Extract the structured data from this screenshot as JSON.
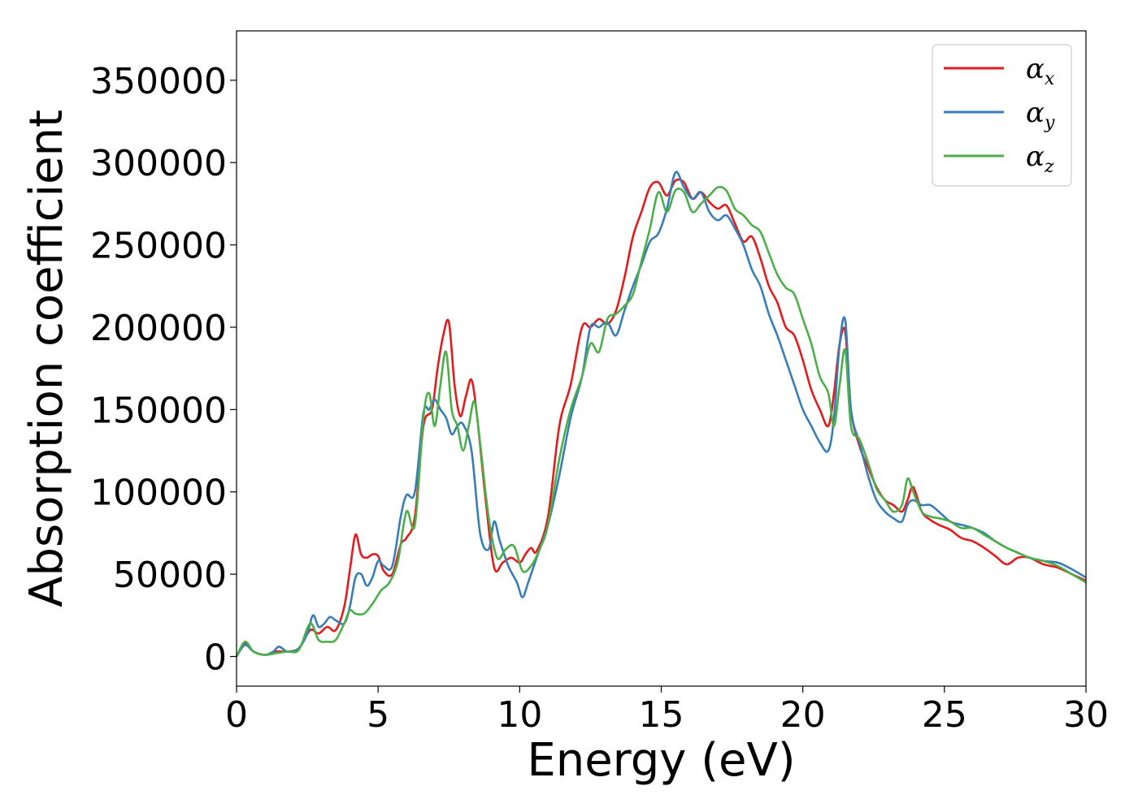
{
  "chart_data": {
    "type": "line",
    "title": "",
    "xlabel": "Energy (eV)",
    "ylabel": "Absorption coefficient",
    "xlim": [
      0,
      30
    ],
    "ylim": [
      -18000,
      380000
    ],
    "xticks": [
      0,
      5,
      10,
      15,
      20,
      25,
      30
    ],
    "yticks": [
      0,
      50000,
      100000,
      150000,
      200000,
      250000,
      300000,
      350000
    ],
    "grid": false,
    "legend_position": "top-right",
    "series": [
      {
        "name": "αx",
        "base": "α",
        "sub": "x",
        "color": "#e41a1c",
        "x": [
          0,
          0.3,
          0.6,
          1.0,
          1.4,
          1.8,
          2.2,
          2.6,
          2.9,
          3.2,
          3.5,
          3.8,
          4.0,
          4.2,
          4.4,
          4.6,
          4.8,
          5.0,
          5.2,
          5.5,
          5.8,
          6.0,
          6.3,
          6.6,
          6.9,
          7.1,
          7.3,
          7.5,
          7.7,
          7.9,
          8.1,
          8.3,
          8.5,
          8.8,
          9.1,
          9.4,
          9.7,
          10.0,
          10.2,
          10.4,
          10.6,
          11.0,
          11.4,
          11.8,
          12.2,
          12.5,
          12.8,
          13.1,
          13.4,
          13.7,
          14.0,
          14.3,
          14.6,
          14.9,
          15.2,
          15.5,
          15.8,
          16.1,
          16.4,
          16.7,
          17.0,
          17.3,
          17.6,
          17.9,
          18.2,
          18.5,
          18.8,
          19.1,
          19.4,
          19.7,
          20.0,
          20.3,
          20.6,
          20.9,
          21.1,
          21.3,
          21.5,
          21.7,
          22.0,
          22.3,
          22.6,
          22.9,
          23.2,
          23.5,
          23.7,
          23.9,
          24.2,
          24.5,
          24.8,
          25.2,
          25.6,
          26.0,
          26.4,
          26.8,
          27.2,
          27.6,
          28.0,
          28.5,
          29.0,
          29.5,
          30.0
        ],
        "values": [
          0,
          8000,
          3000,
          1000,
          3000,
          3000,
          5000,
          16000,
          14000,
          18000,
          16000,
          30000,
          52000,
          74000,
          62000,
          60000,
          62000,
          61000,
          52000,
          50000,
          68000,
          72000,
          85000,
          140000,
          150000,
          175000,
          195000,
          203000,
          165000,
          146000,
          158000,
          168000,
          145000,
          95000,
          54000,
          57000,
          60000,
          57000,
          62000,
          66000,
          64000,
          85000,
          140000,
          165000,
          200000,
          200000,
          205000,
          202000,
          210000,
          230000,
          255000,
          270000,
          285000,
          288000,
          280000,
          289000,
          288000,
          278000,
          282000,
          276000,
          272000,
          274000,
          263000,
          252000,
          255000,
          242000,
          225000,
          215000,
          200000,
          195000,
          180000,
          162000,
          150000,
          140000,
          160000,
          190000,
          197000,
          150000,
          128000,
          115000,
          103000,
          95000,
          92000,
          88000,
          95000,
          103000,
          88000,
          83000,
          80000,
          77000,
          72000,
          70000,
          66000,
          61000,
          56000,
          60000,
          60000,
          56000,
          54000,
          50000,
          46000
        ]
      },
      {
        "name": "αy",
        "base": "α",
        "sub": "y",
        "color": "#377eb8",
        "x": [
          0,
          0.3,
          0.6,
          1.0,
          1.3,
          1.5,
          1.8,
          2.2,
          2.5,
          2.7,
          2.9,
          3.1,
          3.3,
          3.5,
          3.8,
          4.0,
          4.2,
          4.4,
          4.6,
          4.8,
          5.0,
          5.2,
          5.5,
          5.8,
          6.0,
          6.3,
          6.6,
          6.8,
          7.0,
          7.2,
          7.4,
          7.6,
          7.8,
          8.0,
          8.3,
          8.6,
          8.9,
          9.1,
          9.3,
          9.6,
          9.9,
          10.1,
          10.3,
          10.6,
          11.0,
          11.4,
          11.8,
          12.2,
          12.5,
          12.8,
          13.1,
          13.4,
          13.7,
          14.0,
          14.3,
          14.6,
          14.9,
          15.2,
          15.5,
          15.8,
          16.1,
          16.4,
          16.7,
          17.0,
          17.3,
          17.6,
          17.9,
          18.2,
          18.5,
          18.8,
          19.1,
          19.4,
          19.7,
          20.0,
          20.3,
          20.6,
          20.9,
          21.1,
          21.3,
          21.5,
          21.7,
          22.0,
          22.3,
          22.6,
          22.9,
          23.2,
          23.5,
          23.7,
          23.9,
          24.2,
          24.5,
          24.8,
          25.2,
          25.6,
          26.0,
          26.4,
          26.8,
          27.2,
          27.6,
          28.0,
          28.5,
          29.0,
          29.5,
          30.0
        ],
        "values": [
          0,
          7000,
          3000,
          1000,
          3000,
          6000,
          3000,
          5000,
          14000,
          25000,
          18000,
          20000,
          24000,
          22000,
          20000,
          30000,
          48000,
          50000,
          43000,
          48000,
          58000,
          55000,
          55000,
          85000,
          98000,
          100000,
          148000,
          150000,
          156000,
          150000,
          145000,
          135000,
          140000,
          141000,
          125000,
          75000,
          65000,
          82000,
          70000,
          55000,
          45000,
          36000,
          45000,
          60000,
          80000,
          110000,
          145000,
          170000,
          200000,
          200000,
          203000,
          195000,
          210000,
          225000,
          238000,
          252000,
          257000,
          272000,
          294000,
          285000,
          278000,
          282000,
          270000,
          265000,
          268000,
          260000,
          250000,
          235000,
          225000,
          208000,
          195000,
          180000,
          165000,
          150000,
          140000,
          130000,
          125000,
          145000,
          190000,
          204000,
          150000,
          130000,
          110000,
          95000,
          88000,
          84000,
          82000,
          92000,
          95000,
          92000,
          92000,
          88000,
          82000,
          80000,
          78000,
          75000,
          70000,
          66000,
          63000,
          60000,
          58000,
          57000,
          53000,
          48000
        ]
      },
      {
        "name": "αz",
        "base": "α",
        "sub": "z",
        "color": "#4daf4a",
        "x": [
          0,
          0.3,
          0.6,
          1.0,
          1.4,
          1.8,
          2.2,
          2.6,
          2.9,
          3.2,
          3.5,
          3.8,
          4.0,
          4.2,
          4.5,
          4.8,
          5.1,
          5.4,
          5.7,
          6.0,
          6.3,
          6.6,
          6.8,
          7.0,
          7.2,
          7.4,
          7.6,
          7.8,
          8.0,
          8.2,
          8.4,
          8.6,
          8.9,
          9.2,
          9.5,
          9.8,
          10.1,
          10.4,
          10.7,
          11.0,
          11.4,
          11.8,
          12.2,
          12.5,
          12.8,
          13.1,
          13.4,
          13.7,
          14.0,
          14.3,
          14.6,
          14.9,
          15.2,
          15.5,
          15.8,
          16.1,
          16.4,
          16.7,
          17.0,
          17.3,
          17.6,
          17.9,
          18.2,
          18.5,
          18.8,
          19.1,
          19.4,
          19.7,
          20.0,
          20.3,
          20.6,
          20.9,
          21.1,
          21.3,
          21.5,
          21.7,
          22.0,
          22.3,
          22.6,
          22.9,
          23.2,
          23.5,
          23.7,
          23.9,
          24.2,
          24.5,
          24.8,
          25.2,
          25.6,
          26.0,
          26.4,
          26.8,
          27.2,
          27.6,
          28.0,
          28.5,
          29.0,
          29.5,
          30.0
        ],
        "values": [
          0,
          9000,
          3000,
          1000,
          2000,
          3000,
          4000,
          20000,
          10000,
          9000,
          10000,
          20000,
          28000,
          26000,
          26000,
          32000,
          40000,
          45000,
          58000,
          88000,
          80000,
          145000,
          160000,
          140000,
          165000,
          185000,
          150000,
          140000,
          125000,
          140000,
          155000,
          130000,
          85000,
          60000,
          65000,
          67000,
          52000,
          55000,
          65000,
          80000,
          120000,
          150000,
          170000,
          190000,
          185000,
          205000,
          208000,
          213000,
          220000,
          240000,
          260000,
          282000,
          270000,
          283000,
          282000,
          270000,
          275000,
          280000,
          285000,
          283000,
          272000,
          268000,
          262000,
          258000,
          245000,
          232000,
          224000,
          220000,
          205000,
          190000,
          170000,
          160000,
          140000,
          165000,
          186000,
          140000,
          132000,
          118000,
          102000,
          95000,
          88000,
          92000,
          108000,
          100000,
          88000,
          85000,
          84000,
          82000,
          78000,
          78000,
          74000,
          70000,
          66000,
          63000,
          60000,
          58000,
          55000,
          50000,
          45000
        ]
      }
    ]
  }
}
